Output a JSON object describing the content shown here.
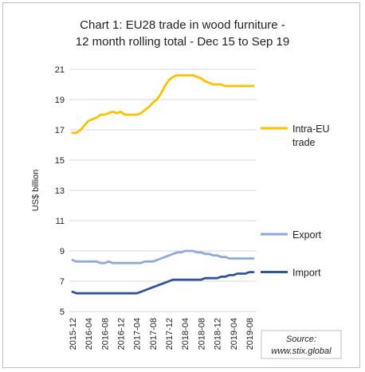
{
  "chart_data": {
    "type": "line",
    "title_lines": [
      "Chart 1: EU28 trade in wood furniture -",
      "12 month rolling total - Dec 15 to Sep 19"
    ],
    "ylabel": "US$ billion",
    "xlabel": "",
    "ylim": [
      5,
      21
    ],
    "yticks": [
      5,
      7,
      9,
      11,
      13,
      15,
      17,
      19,
      21
    ],
    "xtick_labels": [
      "2015-12",
      "2016-04",
      "2016-08",
      "2016-12",
      "2017-04",
      "2017-08",
      "2017-12",
      "2018-04",
      "2018-08",
      "2018-12",
      "2019-04",
      "2019-08"
    ],
    "x": [
      "2015-12",
      "2016-01",
      "2016-02",
      "2016-03",
      "2016-04",
      "2016-05",
      "2016-06",
      "2016-07",
      "2016-08",
      "2016-09",
      "2016-10",
      "2016-11",
      "2016-12",
      "2017-01",
      "2017-02",
      "2017-03",
      "2017-04",
      "2017-05",
      "2017-06",
      "2017-07",
      "2017-08",
      "2017-09",
      "2017-10",
      "2017-11",
      "2017-12",
      "2018-01",
      "2018-02",
      "2018-03",
      "2018-04",
      "2018-05",
      "2018-06",
      "2018-07",
      "2018-08",
      "2018-09",
      "2018-10",
      "2018-11",
      "2018-12",
      "2019-01",
      "2019-02",
      "2019-03",
      "2019-04",
      "2019-05",
      "2019-06",
      "2019-07",
      "2019-08",
      "2019-09"
    ],
    "grid": "horizontal",
    "legend_position": "right",
    "series": [
      {
        "name": "Intra-EU trade",
        "legend_lines": [
          "Intra-EU",
          "trade"
        ],
        "color": "#ffc000",
        "values": [
          16.8,
          16.8,
          17.0,
          17.3,
          17.6,
          17.7,
          17.8,
          18.0,
          18.0,
          18.1,
          18.2,
          18.1,
          18.2,
          18.0,
          18.0,
          18.0,
          18.0,
          18.1,
          18.3,
          18.5,
          18.8,
          19.0,
          19.4,
          19.9,
          20.3,
          20.5,
          20.6,
          20.6,
          20.6,
          20.6,
          20.6,
          20.5,
          20.4,
          20.2,
          20.1,
          20.0,
          20.0,
          20.0,
          19.9,
          19.9,
          19.9,
          19.9,
          19.9,
          19.9,
          19.9,
          19.9
        ]
      },
      {
        "name": "Export",
        "legend_lines": [
          "Export"
        ],
        "color": "#8eaadb",
        "values": [
          8.4,
          8.3,
          8.3,
          8.3,
          8.3,
          8.3,
          8.3,
          8.2,
          8.2,
          8.3,
          8.2,
          8.2,
          8.2,
          8.2,
          8.2,
          8.2,
          8.2,
          8.2,
          8.3,
          8.3,
          8.3,
          8.4,
          8.5,
          8.6,
          8.7,
          8.8,
          8.9,
          8.9,
          9.0,
          9.0,
          9.0,
          8.9,
          8.9,
          8.8,
          8.8,
          8.7,
          8.7,
          8.6,
          8.6,
          8.5,
          8.5,
          8.5,
          8.5,
          8.5,
          8.5,
          8.5
        ]
      },
      {
        "name": "Import",
        "legend_lines": [
          "Import"
        ],
        "color": "#2f5597",
        "values": [
          6.3,
          6.2,
          6.2,
          6.2,
          6.2,
          6.2,
          6.2,
          6.2,
          6.2,
          6.2,
          6.2,
          6.2,
          6.2,
          6.2,
          6.2,
          6.2,
          6.2,
          6.3,
          6.4,
          6.5,
          6.6,
          6.7,
          6.8,
          6.9,
          7.0,
          7.1,
          7.1,
          7.1,
          7.1,
          7.1,
          7.1,
          7.1,
          7.1,
          7.2,
          7.2,
          7.2,
          7.2,
          7.3,
          7.3,
          7.4,
          7.4,
          7.5,
          7.5,
          7.5,
          7.6,
          7.6
        ]
      }
    ],
    "source_lines": [
      "Source:",
      "www.stix.global"
    ]
  }
}
